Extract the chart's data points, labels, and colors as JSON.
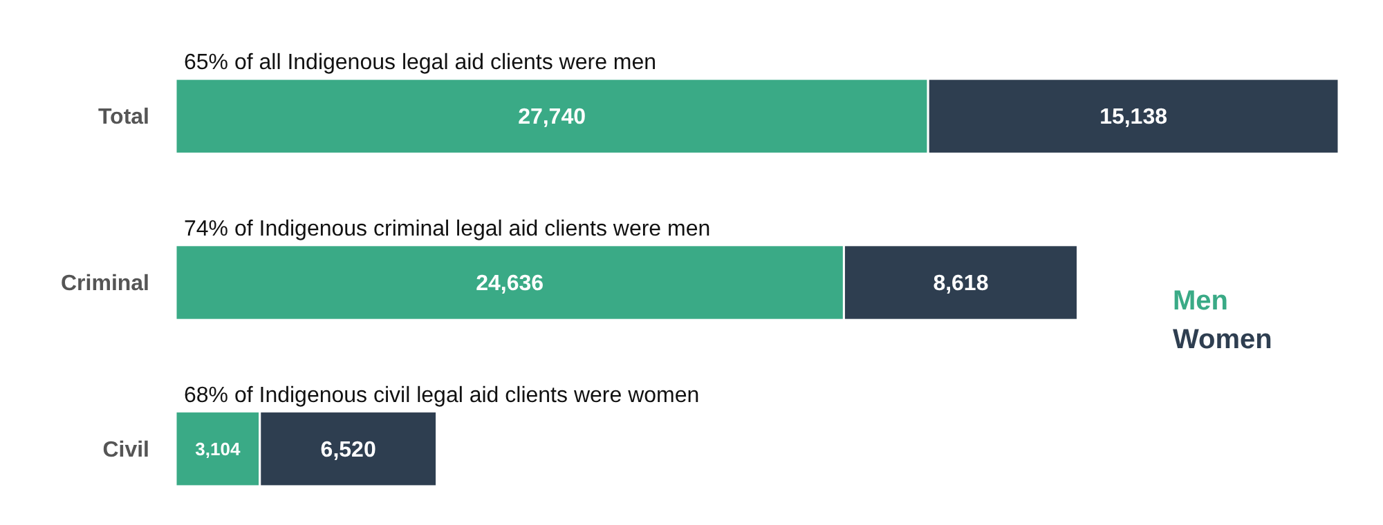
{
  "chart_data": {
    "type": "bar",
    "orientation": "horizontal",
    "stacked": true,
    "categories": [
      "Total",
      "Criminal",
      "Civil"
    ],
    "series": [
      {
        "name": "Men",
        "color": "#3aaa86",
        "values": [
          27740,
          24636,
          3104
        ],
        "value_labels": [
          "27,740",
          "24,636",
          "3,104"
        ]
      },
      {
        "name": "Women",
        "color": "#2e3e50",
        "values": [
          15138,
          8618,
          6520
        ],
        "value_labels": [
          "15,138",
          "8,618",
          "6,520"
        ]
      }
    ],
    "legend": "right",
    "annotations": [
      "65% of all Indigenous legal aid clients were men",
      "74% of Indigenous criminal legal aid clients were men",
      "68% of Indigenous civil legal aid clients were women"
    ]
  }
}
